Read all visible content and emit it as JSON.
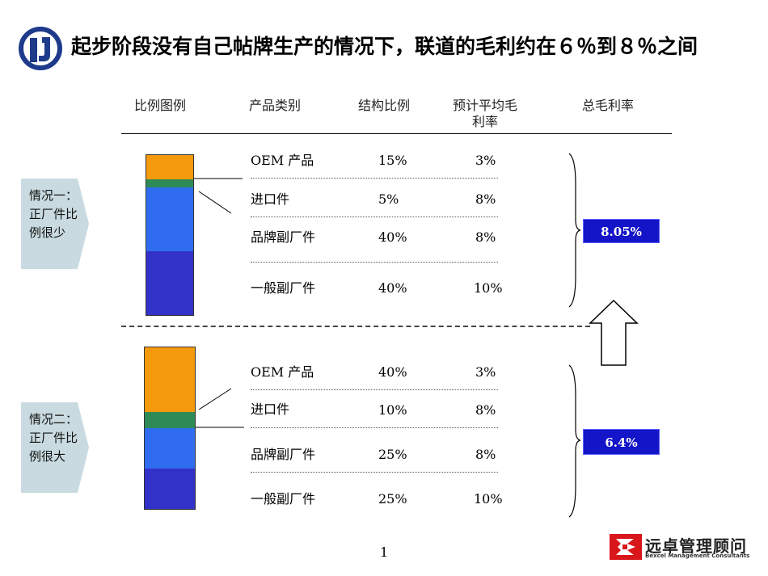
{
  "title": "起步阶段没有自己帖牌生产的情况下，联道的毛利约在６％到８％之间",
  "headers": {
    "chart": "比例图例",
    "category": "产品类别",
    "share": "结构比例",
    "margin_line1": "预计平均毛",
    "margin_line2": "利率",
    "total": "总毛利率"
  },
  "scenario1": {
    "label": "情况一：正厂件比例很少",
    "rows": [
      {
        "category": "OEM 产品",
        "share": "15%",
        "margin": "3%"
      },
      {
        "category": "进口件",
        "share": "5%",
        "margin": "8%"
      },
      {
        "category": "品牌副厂件",
        "share": "40%",
        "margin": "8%"
      },
      {
        "category": "一般副厂件",
        "share": "40%",
        "margin": "10%"
      }
    ],
    "total": "8.05%"
  },
  "scenario2": {
    "label": "情况二：正厂件比例很大",
    "rows": [
      {
        "category": "OEM 产品",
        "share": "40%",
        "margin": "3%"
      },
      {
        "category": "进口件",
        "share": "10%",
        "margin": "8%"
      },
      {
        "category": "品牌副厂件",
        "share": "25%",
        "margin": "8%"
      },
      {
        "category": "一般副厂件",
        "share": "25%",
        "margin": "10%"
      }
    ],
    "total": "6.4%"
  },
  "segment_colors": [
    "#f59a0c",
    "#2e8b57",
    "#2f6cf0",
    "#3232c8"
  ],
  "page_number": "1",
  "brand": {
    "name_cn": "远卓管理顾问",
    "name_en": "Bexcel Management Consultants"
  }
}
